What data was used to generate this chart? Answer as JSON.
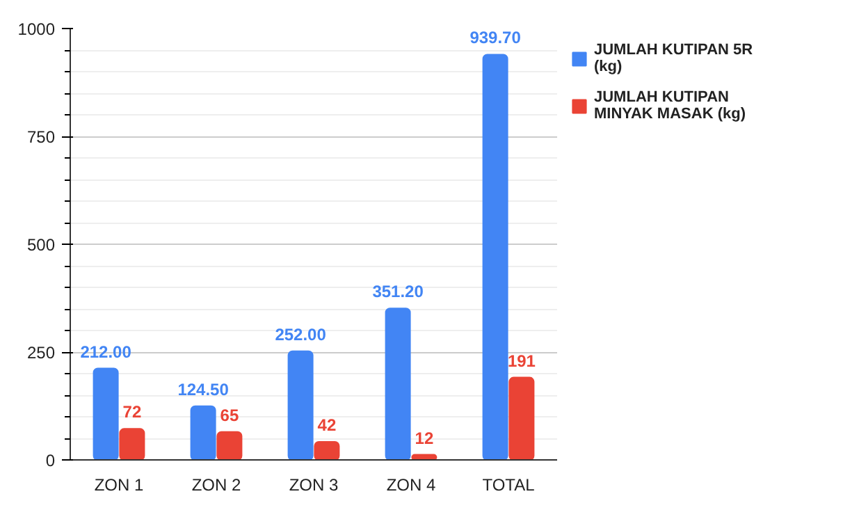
{
  "chart_data": {
    "type": "bar",
    "categories": [
      "ZON 1",
      "ZON 2",
      "ZON 3",
      "ZON 4",
      "TOTAL"
    ],
    "series": [
      {
        "name": "JUMLAH KUTIPAN 5R (kg)",
        "color": "#4285f4",
        "values": [
          212.0,
          124.5,
          252.0,
          351.2,
          939.7
        ],
        "value_labels": [
          "212.00",
          "124.50",
          "252.00",
          "351.20",
          "939.70"
        ]
      },
      {
        "name": "JUMLAH KUTIPAN MINYAK MASAK (kg)",
        "color": "#ea4335",
        "values": [
          72,
          65,
          42,
          12,
          191
        ],
        "value_labels": [
          "72",
          "65",
          "42",
          "12",
          "191"
        ]
      }
    ],
    "ylim": [
      0,
      1000
    ],
    "yticks": [
      0,
      250,
      500,
      750,
      1000
    ],
    "grid": "y",
    "legend": "top right"
  }
}
